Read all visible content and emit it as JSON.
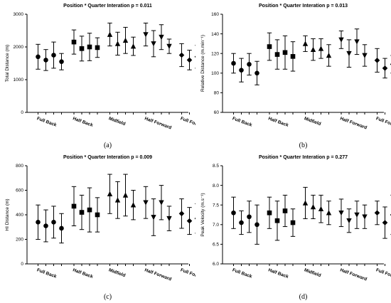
{
  "chart_data": [
    {
      "type": "scatter",
      "panel_label": "(a)",
      "title": "Position * Quarter Interation p = 0.011",
      "ylabel": "Total Distance (m)",
      "ylim": [
        0,
        3000
      ],
      "yticks": [
        0,
        1000,
        2000,
        3000
      ],
      "categories": [
        "Full Back",
        "Half Back",
        "Midfield",
        "Half Forward",
        "Full Forward"
      ],
      "marker": "mixed",
      "markers": [
        "circle",
        "square",
        "triangle-up",
        "triangle-down",
        "diamond"
      ],
      "values": [
        [
          1700,
          1600,
          1750,
          1550
        ],
        [
          2150,
          1950,
          2000,
          1980
        ],
        [
          2380,
          2100,
          2200,
          2020
        ],
        [
          2380,
          2100,
          2300,
          2020
        ],
        [
          1750,
          1600,
          1700,
          1650
        ]
      ],
      "errors": [
        [
          380,
          320,
          400,
          250
        ],
        [
          370,
          380,
          420,
          300
        ],
        [
          350,
          350,
          400,
          280
        ],
        [
          350,
          400,
          380,
          220
        ],
        [
          350,
          300,
          350,
          250
        ]
      ]
    },
    {
      "type": "scatter",
      "panel_label": "(b)",
      "title": "Position * Quarter Interation p = 0.013",
      "ylabel": "Relative Distance (m.min⁻¹)",
      "ylim": [
        60,
        160
      ],
      "yticks": [
        60,
        80,
        100,
        120,
        140,
        160
      ],
      "categories": [
        "Full Back",
        "Half Back",
        "Midfield",
        "Half Forward",
        "Full Forward"
      ],
      "marker": "mixed",
      "markers": [
        "circle",
        "square",
        "triangle-up",
        "triangle-down",
        "diamond"
      ],
      "values": [
        [
          110,
          103,
          109,
          100
        ],
        [
          127,
          119,
          121,
          117
        ],
        [
          130,
          124,
          125,
          118
        ],
        [
          134,
          120,
          132,
          118
        ],
        [
          113,
          105,
          109,
          102
        ]
      ],
      "errors": [
        [
          10,
          12,
          11,
          12
        ],
        [
          14,
          15,
          17,
          15
        ],
        [
          8,
          11,
          10,
          11
        ],
        [
          9,
          14,
          13,
          11
        ],
        [
          12,
          10,
          9,
          12
        ]
      ]
    },
    {
      "type": "scatter",
      "panel_label": "(c)",
      "title": "Position * Quarter Interation p = 0.009",
      "ylabel": "HI Distance (m)",
      "ylim": [
        0,
        800
      ],
      "yticks": [
        0,
        200,
        400,
        600,
        800
      ],
      "categories": [
        "Full Back",
        "Half Back",
        "Midfield",
        "Half Forward",
        "Full Forward"
      ],
      "marker": "mixed",
      "markers": [
        "circle",
        "square",
        "triangle-up",
        "triangle-down",
        "diamond"
      ],
      "values": [
        [
          340,
          310,
          340,
          290
        ],
        [
          470,
          420,
          440,
          400
        ],
        [
          570,
          520,
          560,
          480
        ],
        [
          500,
          380,
          500,
          370
        ],
        [
          410,
          350,
          370,
          280
        ]
      ],
      "errors": [
        [
          140,
          130,
          130,
          120
        ],
        [
          160,
          140,
          180,
          140
        ],
        [
          160,
          150,
          170,
          120
        ],
        [
          130,
          150,
          140,
          100
        ],
        [
          120,
          110,
          120,
          100
        ]
      ]
    },
    {
      "type": "scatter",
      "panel_label": "(d)",
      "title": "Position * Quarter Interation p = 0.277",
      "ylabel": "Peak Velocity (m.s⁻¹)",
      "ylim": [
        6.0,
        8.5
      ],
      "yticks": [
        "6.0",
        "6.5",
        "7.0",
        "7.5",
        "8.0",
        "8.5"
      ],
      "categories": [
        "Full Back",
        "Half Back",
        "Midfield",
        "Half Forward",
        "Full Forward"
      ],
      "marker": "mixed",
      "markers": [
        "circle",
        "square",
        "triangle-up",
        "triangle-down",
        "diamond"
      ],
      "values": [
        [
          7.3,
          7.05,
          7.2,
          7.0
        ],
        [
          7.3,
          7.1,
          7.35,
          7.05
        ],
        [
          7.55,
          7.45,
          7.4,
          7.3
        ],
        [
          7.3,
          7.1,
          7.25,
          7.2
        ],
        [
          7.3,
          7.05,
          7.25,
          7.0
        ]
      ],
      "errors": [
        [
          0.4,
          0.3,
          0.4,
          0.5
        ],
        [
          0.4,
          0.5,
          0.4,
          0.35
        ],
        [
          0.4,
          0.3,
          0.35,
          0.3
        ],
        [
          0.35,
          0.3,
          0.35,
          0.3
        ],
        [
          0.3,
          0.4,
          0.5,
          0.3
        ]
      ]
    }
  ]
}
